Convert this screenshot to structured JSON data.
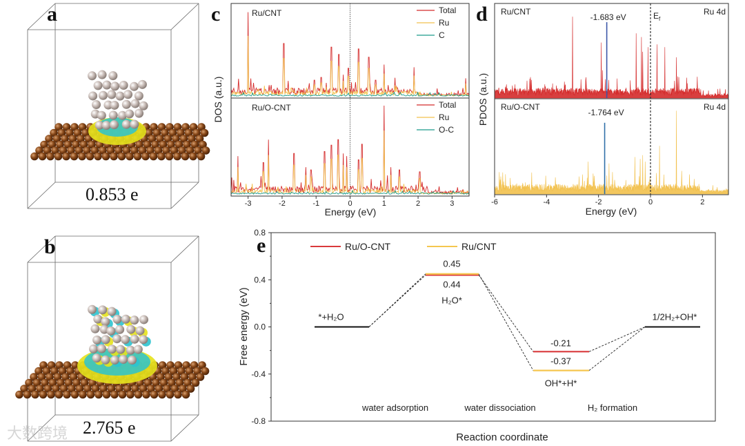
{
  "panels": {
    "a": {
      "letter": "a",
      "charge": "0.853 e"
    },
    "b": {
      "letter": "b",
      "charge": "2.765 e"
    },
    "c": {
      "letter": "c"
    },
    "d": {
      "letter": "d"
    },
    "e": {
      "letter": "e"
    }
  },
  "watermark": "大数跨境",
  "colors": {
    "total": "#d42a2a",
    "ru": "#f2c14e",
    "c": "#1a9a8a",
    "marker_top": "#3a57a8",
    "marker_bottom": "#2f6fa8",
    "ru_o_cnt": "#d9393b",
    "ru_cnt": "#f5c64f",
    "slab": "#7a3d12",
    "ru_atom": "#c9bdb8"
  },
  "chart_data": [
    {
      "id": "c",
      "type": "line",
      "xlabel": "Energy (eV)",
      "ylabel": "DOS (a.u.)",
      "xlim": [
        -3.5,
        3.5
      ],
      "xticks": [
        -3,
        -2,
        -1,
        0,
        1,
        2,
        3
      ],
      "fermi_level": 0,
      "panes": [
        {
          "title": "Ru/CNT",
          "legend": [
            "Total",
            "Ru",
            "C"
          ],
          "peaks_total": [
            [
              -3.0,
              0.92
            ],
            [
              -1.95,
              0.58
            ],
            [
              -0.55,
              0.54
            ],
            [
              -0.33,
              0.46
            ],
            [
              -0.05,
              0.31
            ],
            [
              0.25,
              0.52
            ],
            [
              0.55,
              0.43
            ],
            [
              1.0,
              0.35
            ],
            [
              1.88,
              0.32
            ],
            [
              3.4,
              0.2
            ],
            [
              -1.05,
              0.18
            ],
            [
              -0.85,
              0.21
            ],
            [
              -0.7,
              0.15
            ],
            [
              -0.2,
              0.24
            ],
            [
              0.75,
              0.18
            ]
          ]
        },
        {
          "title": "Ru/O-CNT",
          "legend": [
            "Total",
            "Ru",
            "O-C"
          ],
          "peaks_total": [
            [
              1.0,
              0.97
            ],
            [
              -2.4,
              0.6
            ],
            [
              -3.3,
              0.42
            ],
            [
              -1.65,
              0.45
            ],
            [
              -0.35,
              0.6
            ],
            [
              -0.55,
              0.54
            ],
            [
              -0.75,
              0.47
            ],
            [
              0.35,
              0.55
            ],
            [
              0.25,
              0.38
            ],
            [
              -2.55,
              0.35
            ],
            [
              -1.3,
              0.3
            ],
            [
              -0.2,
              0.45
            ],
            [
              -0.1,
              0.42
            ],
            [
              -1.15,
              0.27
            ],
            [
              1.2,
              0.3
            ],
            [
              1.45,
              0.27
            ],
            [
              2.05,
              0.25
            ]
          ]
        }
      ]
    },
    {
      "id": "d",
      "type": "line",
      "xlabel": "Energy (eV)",
      "ylabel": "PDOS (a.u.)",
      "xlim": [
        -6,
        3
      ],
      "xticks": [
        -6,
        -4,
        -2,
        0,
        2
      ],
      "fermi_label_main": "E",
      "fermi_label_sub": "f",
      "panes": [
        {
          "title": "Ru/CNT",
          "orbital": "Ru 4d",
          "d_band_center": -1.683,
          "d_band_label": "-1.683 eV",
          "peaks": [
            [
              -3.0,
              0.88
            ],
            [
              -1.9,
              0.6
            ],
            [
              -0.55,
              0.7
            ],
            [
              -0.35,
              0.66
            ],
            [
              0.25,
              0.58
            ],
            [
              0.55,
              0.55
            ],
            [
              1.0,
              0.44
            ],
            [
              -0.1,
              0.55
            ],
            [
              -0.3,
              0.5
            ],
            [
              -1.85,
              0.3
            ]
          ]
        },
        {
          "title": "Ru/O-CNT",
          "orbital": "Ru 4d",
          "d_band_center": -1.764,
          "d_band_label": "-1.764 eV",
          "peaks": [
            [
              1.0,
              0.9
            ],
            [
              0.35,
              0.52
            ],
            [
              -2.4,
              0.35
            ],
            [
              -0.3,
              0.42
            ],
            [
              -0.6,
              0.4
            ],
            [
              -0.4,
              0.38
            ],
            [
              -1.6,
              0.33
            ],
            [
              -0.2,
              0.35
            ],
            [
              1.2,
              0.25
            ]
          ]
        }
      ]
    },
    {
      "id": "e",
      "type": "line",
      "title": "",
      "xlabel": "Reaction coordinate",
      "ylabel": "Free energy (eV)",
      "ylim": [
        -0.8,
        0.8
      ],
      "yticks": [
        "0.8",
        "0.4",
        "0.0",
        "-0.4",
        "-0.8"
      ],
      "ytick_values": [
        0.8,
        0.4,
        0.0,
        -0.4,
        -0.8
      ],
      "series": [
        {
          "name": "Ru/O-CNT",
          "values": [
            0.0,
            0.44,
            -0.21,
            0.0
          ],
          "labels": [
            "",
            "0.44",
            "-0.21",
            ""
          ]
        },
        {
          "name": "Ru/CNT",
          "values": [
            0.0,
            0.45,
            -0.37,
            0.0
          ],
          "labels": [
            "",
            "0.45",
            "-0.37",
            ""
          ]
        }
      ],
      "states": [
        "*+H₂O",
        "H₂O*",
        "OH*+H*",
        "1/2H₂+OH*"
      ],
      "steps": [
        "water adsorption",
        "water dissociation",
        "H₂ formation"
      ],
      "legend": "top-left"
    }
  ]
}
